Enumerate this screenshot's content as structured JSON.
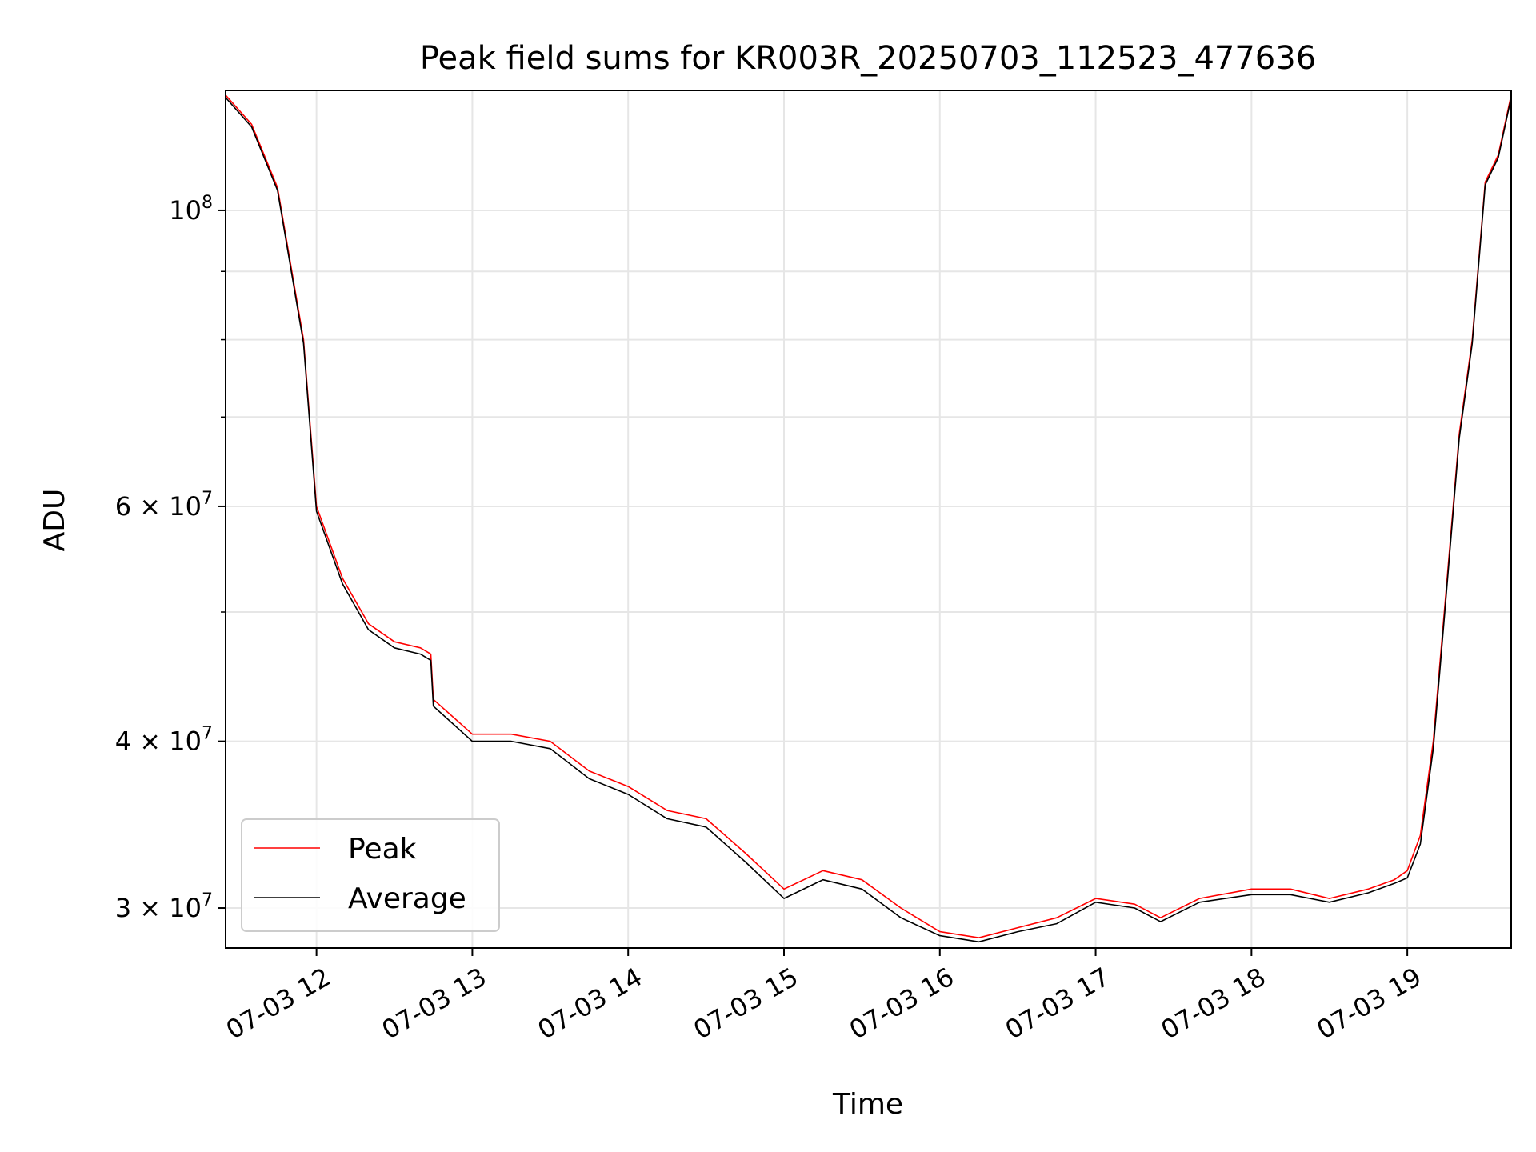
{
  "chart_data": {
    "type": "line",
    "title": "Peak field sums for KR003R_20250703_112523_477636",
    "xlabel": "Time",
    "ylabel": "ADU",
    "yscale": "log",
    "grid": true,
    "legend_position": "lower-left",
    "xlim": [
      "07-03 11:25",
      "07-03 19:40"
    ],
    "ylim": [
      28000000,
      123000000
    ],
    "x_ticks": [
      "07-03 12",
      "07-03 13",
      "07-03 14",
      "07-03 15",
      "07-03 16",
      "07-03 17",
      "07-03 18",
      "07-03 19"
    ],
    "y_major_ticks": [
      {
        "value": 100000000,
        "mantissa": "",
        "exp": "8"
      },
      {
        "value": 60000000,
        "mantissa": "6 × ",
        "exp": "7"
      },
      {
        "value": 40000000,
        "mantissa": "4 × ",
        "exp": "7"
      },
      {
        "value": 30000000,
        "mantissa": "3 × ",
        "exp": "7"
      }
    ],
    "y_minor_ticks": [
      90000000,
      80000000,
      70000000,
      50000000
    ],
    "x": [
      "07-03 11:25",
      "07-03 11:35",
      "07-03 11:45",
      "07-03 11:55",
      "07-03 12:00",
      "07-03 12:10",
      "07-03 12:20",
      "07-03 12:30",
      "07-03 12:40",
      "07-03 12:44",
      "07-03 12:45",
      "07-03 13:00",
      "07-03 13:15",
      "07-03 13:30",
      "07-03 13:45",
      "07-03 14:00",
      "07-03 14:15",
      "07-03 14:30",
      "07-03 14:45",
      "07-03 15:00",
      "07-03 15:15",
      "07-03 15:30",
      "07-03 15:45",
      "07-03 16:00",
      "07-03 16:15",
      "07-03 16:30",
      "07-03 16:45",
      "07-03 17:00",
      "07-03 17:15",
      "07-03 17:25",
      "07-03 17:40",
      "07-03 18:00",
      "07-03 18:15",
      "07-03 18:30",
      "07-03 18:45",
      "07-03 18:55",
      "07-03 19:00",
      "07-03 19:05",
      "07-03 19:10",
      "07-03 19:15",
      "07-03 19:20",
      "07-03 19:25",
      "07-03 19:30",
      "07-03 19:35",
      "07-03 19:40"
    ],
    "series": [
      {
        "name": "Peak",
        "color": "#ff0000",
        "values": [
          122000000,
          116000000,
          104000000,
          80000000,
          60000000,
          53000000,
          49000000,
          47500000,
          47000000,
          46500000,
          43000000,
          40500000,
          40500000,
          40000000,
          38000000,
          37000000,
          35500000,
          35000000,
          33000000,
          31000000,
          32000000,
          31500000,
          30000000,
          28800000,
          28500000,
          29000000,
          29500000,
          30500000,
          30200000,
          29500000,
          30500000,
          31000000,
          31000000,
          30500000,
          31000000,
          31500000,
          32000000,
          34000000,
          40000000,
          52000000,
          68000000,
          80000000,
          105000000,
          110000000,
          122000000
        ]
      },
      {
        "name": "Average",
        "color": "#000000",
        "values": [
          121500000,
          115500000,
          103500000,
          79500000,
          59500000,
          52500000,
          48500000,
          47000000,
          46500000,
          46000000,
          42500000,
          40000000,
          40000000,
          39500000,
          37500000,
          36500000,
          35000000,
          34500000,
          32500000,
          30500000,
          31500000,
          31000000,
          29500000,
          28600000,
          28300000,
          28800000,
          29200000,
          30300000,
          30000000,
          29300000,
          30300000,
          30700000,
          30700000,
          30300000,
          30800000,
          31300000,
          31600000,
          33500000,
          39500000,
          51500000,
          67500000,
          79500000,
          104500000,
          109500000,
          121500000
        ]
      }
    ]
  }
}
